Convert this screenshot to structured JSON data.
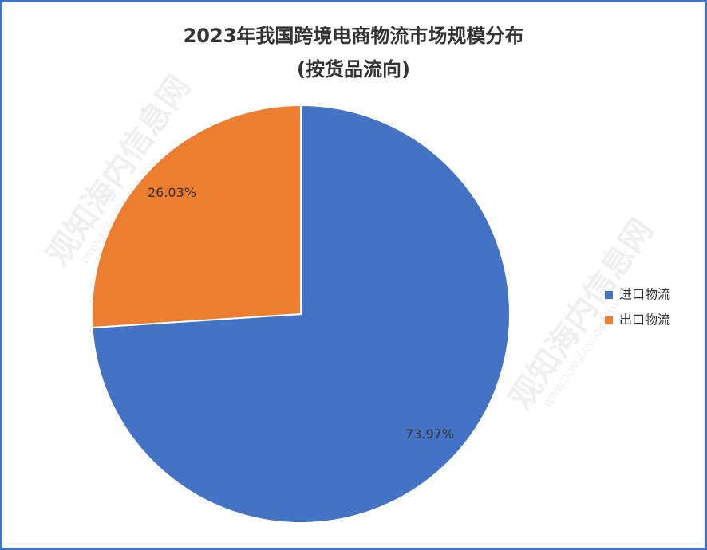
{
  "chart_data": {
    "type": "pie",
    "title": "2023年我国跨境电商物流市场规模分布",
    "subtitle": "(按货品流向)",
    "categories": [
      "进口物流",
      "出口物流"
    ],
    "values": [
      73.97,
      26.03
    ],
    "value_labels": [
      "73.97%",
      "26.03%"
    ],
    "colors": [
      "#4472c4",
      "#ed7d31"
    ],
    "legend": "right"
  },
  "watermark": {
    "name": "观知海内信息网",
    "url": "WWW.DONGFANGQB.COM"
  }
}
